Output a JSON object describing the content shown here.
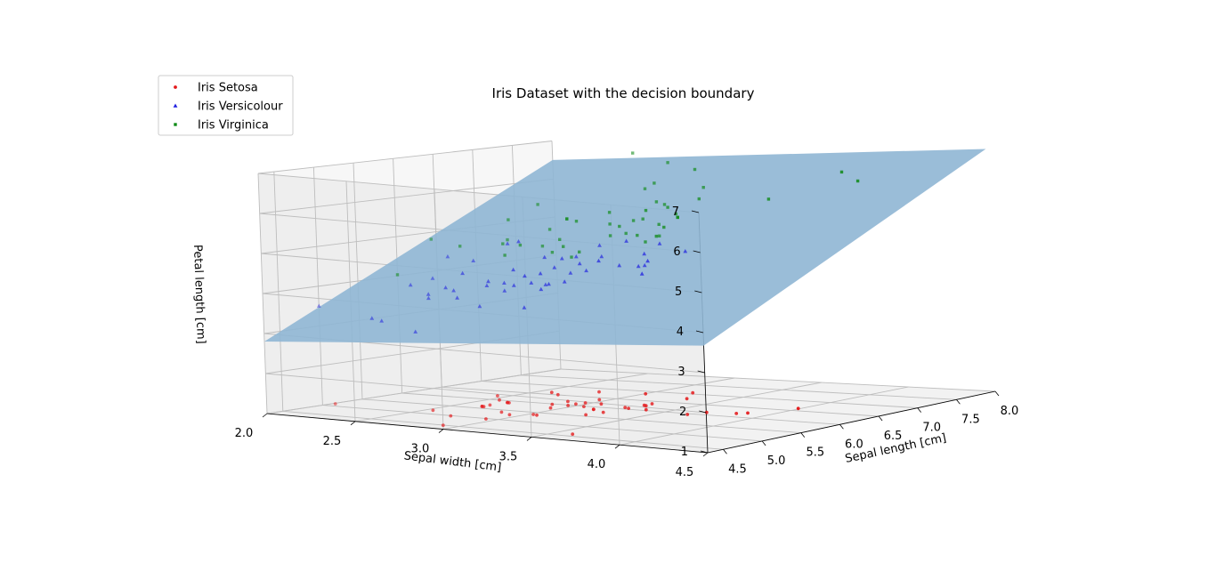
{
  "chart_data": {
    "type": "scatter",
    "title": "Iris Dataset with the decision boundary",
    "xlabel": "Sepal length [cm]",
    "ylabel": "Sepal width [cm]",
    "zlabel": "Petal length [cm]",
    "xlim": [
      4.3,
      8.0
    ],
    "ylim": [
      2.0,
      4.5
    ],
    "zlim": [
      1.0,
      7.0
    ],
    "xticks": [
      "4.5",
      "5.0",
      "5.5",
      "6.0",
      "6.5",
      "7.0",
      "7.5",
      "8.0"
    ],
    "yticks": [
      "4.5",
      "4.0",
      "3.5",
      "3.0",
      "2.5",
      "2.0"
    ],
    "zticks": [
      "1",
      "2",
      "3",
      "4",
      "5",
      "6",
      "7"
    ],
    "grid": true,
    "legend_position": "top-left",
    "decision_boundary_color": "#8fb6d4",
    "series": [
      {
        "name": "Iris Setosa",
        "color": "#e41a1c",
        "marker": "circle",
        "points": [
          [
            5.1,
            3.5,
            1.4
          ],
          [
            4.9,
            3.0,
            1.4
          ],
          [
            4.7,
            3.2,
            1.3
          ],
          [
            4.6,
            3.1,
            1.5
          ],
          [
            5.0,
            3.6,
            1.4
          ],
          [
            5.4,
            3.9,
            1.7
          ],
          [
            4.6,
            3.4,
            1.4
          ],
          [
            5.0,
            3.4,
            1.5
          ],
          [
            4.4,
            2.9,
            1.4
          ],
          [
            4.9,
            3.1,
            1.5
          ],
          [
            5.4,
            3.7,
            1.5
          ],
          [
            4.8,
            3.4,
            1.6
          ],
          [
            4.8,
            3.0,
            1.4
          ],
          [
            4.3,
            3.0,
            1.1
          ],
          [
            5.8,
            4.0,
            1.2
          ],
          [
            5.7,
            4.4,
            1.5
          ],
          [
            5.4,
            3.9,
            1.3
          ],
          [
            5.1,
            3.5,
            1.4
          ],
          [
            5.7,
            3.8,
            1.7
          ],
          [
            5.1,
            3.8,
            1.5
          ],
          [
            5.4,
            3.4,
            1.7
          ],
          [
            5.1,
            3.7,
            1.5
          ],
          [
            4.6,
            3.6,
            1.0
          ],
          [
            5.1,
            3.3,
            1.7
          ],
          [
            4.8,
            3.4,
            1.9
          ],
          [
            5.0,
            3.0,
            1.6
          ],
          [
            5.0,
            3.4,
            1.6
          ],
          [
            5.2,
            3.5,
            1.5
          ],
          [
            5.2,
            3.4,
            1.4
          ],
          [
            4.7,
            3.2,
            1.6
          ],
          [
            4.8,
            3.1,
            1.6
          ],
          [
            5.4,
            3.4,
            1.5
          ],
          [
            5.2,
            4.1,
            1.5
          ],
          [
            5.5,
            4.2,
            1.4
          ],
          [
            4.9,
            3.1,
            1.5
          ],
          [
            5.0,
            3.2,
            1.2
          ],
          [
            5.5,
            3.5,
            1.3
          ],
          [
            4.4,
            3.0,
            1.3
          ],
          [
            5.1,
            3.4,
            1.5
          ],
          [
            5.0,
            3.5,
            1.3
          ],
          [
            4.5,
            2.3,
            1.3
          ],
          [
            4.4,
            3.2,
            1.3
          ],
          [
            5.0,
            3.5,
            1.6
          ],
          [
            5.1,
            3.8,
            1.9
          ],
          [
            4.8,
            3.0,
            1.4
          ],
          [
            5.1,
            3.8,
            1.6
          ],
          [
            4.6,
            3.2,
            1.4
          ],
          [
            5.3,
            3.7,
            1.5
          ],
          [
            5.0,
            3.3,
            1.4
          ]
        ]
      },
      {
        "name": "Iris Versicolour",
        "color": "#1f1fe0",
        "marker": "triangle",
        "points": [
          [
            7.0,
            3.2,
            4.7
          ],
          [
            6.4,
            3.2,
            4.5
          ],
          [
            6.9,
            3.1,
            4.9
          ],
          [
            5.5,
            2.3,
            4.0
          ],
          [
            6.5,
            2.8,
            4.6
          ],
          [
            5.7,
            2.8,
            4.5
          ],
          [
            6.3,
            3.3,
            4.7
          ],
          [
            4.9,
            2.4,
            3.3
          ],
          [
            6.6,
            2.9,
            4.6
          ],
          [
            5.2,
            2.7,
            3.9
          ],
          [
            5.0,
            2.0,
            3.5
          ],
          [
            5.9,
            3.0,
            4.2
          ],
          [
            6.0,
            2.2,
            4.0
          ],
          [
            6.1,
            2.9,
            4.7
          ],
          [
            5.6,
            2.9,
            3.6
          ],
          [
            6.7,
            3.1,
            4.4
          ],
          [
            5.6,
            3.0,
            4.5
          ],
          [
            5.8,
            2.7,
            4.1
          ],
          [
            6.2,
            2.2,
            4.5
          ],
          [
            5.6,
            2.5,
            3.9
          ],
          [
            5.9,
            3.2,
            4.8
          ],
          [
            6.1,
            2.8,
            4.0
          ],
          [
            6.3,
            2.5,
            4.9
          ],
          [
            6.1,
            2.8,
            4.7
          ],
          [
            6.4,
            2.9,
            4.3
          ],
          [
            6.6,
            3.0,
            4.4
          ],
          [
            6.8,
            2.8,
            4.8
          ],
          [
            6.7,
            3.0,
            5.0
          ],
          [
            6.0,
            2.9,
            4.5
          ],
          [
            5.7,
            2.6,
            3.5
          ],
          [
            5.5,
            2.4,
            3.8
          ],
          [
            5.5,
            2.4,
            3.7
          ],
          [
            5.8,
            2.7,
            3.9
          ],
          [
            6.0,
            2.7,
            5.1
          ],
          [
            5.4,
            3.0,
            4.5
          ],
          [
            6.0,
            3.4,
            4.5
          ],
          [
            6.7,
            3.1,
            4.7
          ],
          [
            6.3,
            2.3,
            4.4
          ],
          [
            5.6,
            3.0,
            4.1
          ],
          [
            5.5,
            2.5,
            4.0
          ],
          [
            5.5,
            2.6,
            4.4
          ],
          [
            6.1,
            3.0,
            4.6
          ],
          [
            5.8,
            2.6,
            4.0
          ],
          [
            5.0,
            2.3,
            3.3
          ],
          [
            5.6,
            2.7,
            4.2
          ],
          [
            5.7,
            3.0,
            4.2
          ],
          [
            5.7,
            2.9,
            4.2
          ],
          [
            6.2,
            2.9,
            4.3
          ],
          [
            5.1,
            2.5,
            3.0
          ],
          [
            5.7,
            2.8,
            4.1
          ]
        ]
      },
      {
        "name": "Iris Virginica",
        "color": "#0e8a16",
        "marker": "square",
        "points": [
          [
            6.3,
            3.3,
            6.0
          ],
          [
            5.8,
            2.7,
            5.1
          ],
          [
            7.1,
            3.0,
            5.9
          ],
          [
            6.3,
            2.9,
            5.6
          ],
          [
            6.5,
            3.0,
            5.8
          ],
          [
            7.6,
            3.0,
            6.6
          ],
          [
            4.9,
            2.5,
            4.5
          ],
          [
            7.3,
            2.9,
            6.3
          ],
          [
            6.7,
            2.5,
            5.8
          ],
          [
            7.2,
            3.6,
            6.1
          ],
          [
            6.5,
            3.2,
            5.1
          ],
          [
            6.4,
            2.7,
            5.3
          ],
          [
            6.8,
            3.0,
            5.5
          ],
          [
            5.7,
            2.5,
            5.0
          ],
          [
            5.8,
            2.8,
            5.1
          ],
          [
            6.4,
            3.2,
            5.3
          ],
          [
            6.5,
            3.0,
            5.5
          ],
          [
            7.7,
            3.8,
            6.7
          ],
          [
            7.7,
            2.6,
            6.9
          ],
          [
            6.0,
            2.2,
            5.0
          ],
          [
            6.9,
            3.2,
            5.7
          ],
          [
            5.6,
            2.8,
            4.9
          ],
          [
            7.7,
            2.8,
            6.7
          ],
          [
            6.3,
            2.7,
            4.9
          ],
          [
            6.7,
            3.3,
            5.7
          ],
          [
            7.2,
            3.2,
            6.0
          ],
          [
            6.2,
            2.8,
            4.8
          ],
          [
            6.1,
            3.0,
            4.9
          ],
          [
            6.4,
            2.8,
            5.6
          ],
          [
            7.2,
            3.0,
            5.8
          ],
          [
            7.4,
            2.8,
            6.1
          ],
          [
            7.9,
            3.8,
            6.4
          ],
          [
            6.4,
            2.8,
            5.6
          ],
          [
            6.3,
            2.8,
            5.1
          ],
          [
            6.1,
            2.6,
            5.6
          ],
          [
            7.7,
            3.0,
            6.1
          ],
          [
            6.3,
            3.4,
            5.6
          ],
          [
            6.4,
            3.1,
            5.5
          ],
          [
            6.0,
            3.0,
            4.8
          ],
          [
            6.9,
            3.1,
            5.4
          ],
          [
            6.7,
            3.1,
            5.6
          ],
          [
            6.9,
            3.1,
            5.1
          ],
          [
            6.8,
            3.2,
            5.9
          ],
          [
            6.7,
            3.3,
            5.7
          ],
          [
            6.7,
            3.0,
            5.2
          ],
          [
            6.3,
            2.5,
            5.0
          ],
          [
            6.5,
            3.0,
            5.2
          ],
          [
            6.2,
            3.4,
            5.4
          ],
          [
            5.9,
            3.0,
            5.1
          ]
        ]
      }
    ]
  }
}
